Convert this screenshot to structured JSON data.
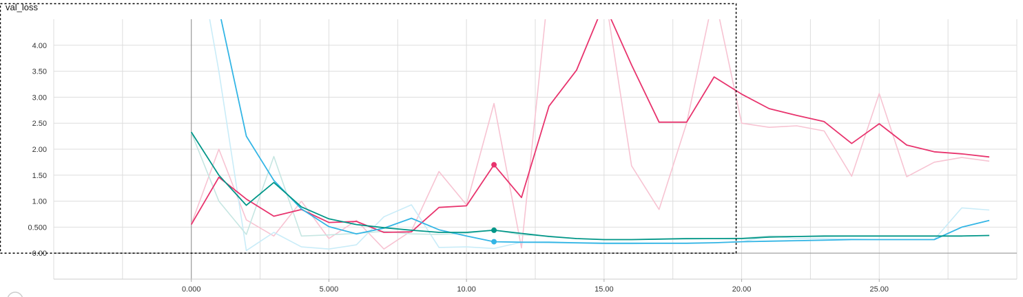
{
  "chart_data": {
    "type": "line",
    "title": "val_loss",
    "xlim": [
      -5,
      30
    ],
    "ylim": [
      -0.5,
      4.5
    ],
    "x_ticks": [
      0,
      5,
      10,
      15,
      20,
      25
    ],
    "x_tick_labels": [
      "0.000",
      "5.000",
      "10.00",
      "15.00",
      "20.00",
      "25.00"
    ],
    "y_ticks": [
      0,
      0.5,
      1,
      1.5,
      2,
      2.5,
      3,
      3.5,
      4
    ],
    "y_tick_labels": [
      "0.00",
      "0.500",
      "1.00",
      "1.50",
      "2.00",
      "2.50",
      "3.00",
      "3.50",
      "4.00"
    ],
    "grid": true,
    "selection_box": {
      "x": [
        -7,
        19.8
      ],
      "y": [
        0,
        4.8
      ]
    },
    "hover_step": 11,
    "series": [
      {
        "color": "#e8336d",
        "raw_color": "#f7c3d2",
        "raw": [
          [
            0,
            0.56
          ],
          [
            1,
            2.0
          ],
          [
            2,
            0.64
          ],
          [
            3,
            0.33
          ],
          [
            4,
            1.0
          ],
          [
            5,
            0.28
          ],
          [
            6,
            0.63
          ],
          [
            7,
            0.08
          ],
          [
            8,
            0.43
          ],
          [
            9,
            1.57
          ],
          [
            10,
            0.93
          ],
          [
            11,
            2.88
          ],
          [
            12,
            0.1
          ],
          [
            13,
            5.2
          ],
          [
            14,
            4.9
          ],
          [
            15,
            5.1
          ],
          [
            16,
            1.68
          ],
          [
            17,
            0.84
          ],
          [
            18,
            2.5
          ],
          [
            19,
            5.0
          ],
          [
            20,
            2.5
          ],
          [
            21,
            2.42
          ],
          [
            22,
            2.45
          ],
          [
            23,
            2.35
          ],
          [
            24,
            1.48
          ],
          [
            25,
            3.07
          ],
          [
            26,
            1.47
          ],
          [
            27,
            1.75
          ],
          [
            28,
            1.84
          ],
          [
            29,
            1.77
          ]
        ],
        "smoothed": [
          [
            0,
            0.55
          ],
          [
            1,
            1.46
          ],
          [
            2,
            1.04
          ],
          [
            3,
            0.71
          ],
          [
            4,
            0.84
          ],
          [
            5,
            0.59
          ],
          [
            6,
            0.61
          ],
          [
            7,
            0.4
          ],
          [
            8,
            0.41
          ],
          [
            9,
            0.88
          ],
          [
            10,
            0.91
          ],
          [
            11,
            1.7
          ],
          [
            12,
            1.07
          ],
          [
            13,
            2.83
          ],
          [
            14,
            3.52
          ],
          [
            15,
            4.8
          ],
          [
            16,
            3.62
          ],
          [
            17,
            2.52
          ],
          [
            18,
            2.52
          ],
          [
            19,
            3.39
          ],
          [
            20,
            3.06
          ],
          [
            21,
            2.78
          ],
          [
            22,
            2.65
          ],
          [
            23,
            2.53
          ],
          [
            24,
            2.11
          ],
          [
            25,
            2.49
          ],
          [
            26,
            2.08
          ],
          [
            27,
            1.95
          ],
          [
            28,
            1.91
          ],
          [
            29,
            1.85
          ]
        ]
      },
      {
        "color": "#33b5e5",
        "raw_color": "#c9ecf8",
        "raw": [
          [
            0,
            6.5
          ],
          [
            1,
            3.5
          ],
          [
            2,
            0.05
          ],
          [
            3,
            0.4
          ],
          [
            4,
            0.12
          ],
          [
            5,
            0.08
          ],
          [
            6,
            0.16
          ],
          [
            7,
            0.7
          ],
          [
            8,
            0.93
          ],
          [
            9,
            0.11
          ],
          [
            10,
            0.12
          ],
          [
            11,
            0.09
          ],
          [
            12,
            0.21
          ],
          [
            13,
            0.2
          ],
          [
            14,
            0.19
          ],
          [
            15,
            0.18
          ],
          [
            16,
            0.18
          ],
          [
            17,
            0.19
          ],
          [
            18,
            0.19
          ],
          [
            19,
            0.2
          ],
          [
            20,
            0.22
          ],
          [
            21,
            0.33
          ],
          [
            22,
            0.28
          ],
          [
            23,
            0.28
          ],
          [
            24,
            0.27
          ],
          [
            25,
            0.26
          ],
          [
            26,
            0.26
          ],
          [
            27,
            0.26
          ],
          [
            28,
            0.87
          ],
          [
            29,
            0.83
          ]
        ],
        "smoothed": [
          [
            0,
            6.5
          ],
          [
            1,
            4.7
          ],
          [
            2,
            2.25
          ],
          [
            3,
            1.4
          ],
          [
            4,
            0.85
          ],
          [
            5,
            0.51
          ],
          [
            6,
            0.37
          ],
          [
            7,
            0.48
          ],
          [
            8,
            0.67
          ],
          [
            9,
            0.45
          ],
          [
            10,
            0.33
          ],
          [
            11,
            0.22
          ],
          [
            12,
            0.21
          ],
          [
            13,
            0.21
          ],
          [
            14,
            0.2
          ],
          [
            15,
            0.19
          ],
          [
            16,
            0.19
          ],
          [
            17,
            0.19
          ],
          [
            18,
            0.19
          ],
          [
            19,
            0.2
          ],
          [
            20,
            0.22
          ],
          [
            21,
            0.23
          ],
          [
            22,
            0.24
          ],
          [
            23,
            0.25
          ],
          [
            24,
            0.26
          ],
          [
            25,
            0.26
          ],
          [
            26,
            0.26
          ],
          [
            27,
            0.26
          ],
          [
            28,
            0.5
          ],
          [
            29,
            0.63
          ]
        ]
      },
      {
        "color": "#009688",
        "raw_color": "#c6e6e2",
        "raw": [
          [
            0,
            2.32
          ],
          [
            1,
            1.0
          ],
          [
            2,
            0.36
          ],
          [
            3,
            1.86
          ],
          [
            4,
            0.33
          ],
          [
            5,
            0.35
          ],
          [
            6,
            0.38
          ],
          [
            7,
            0.42
          ],
          [
            8,
            0.37
          ],
          [
            9,
            0.36
          ],
          [
            10,
            0.38
          ],
          [
            11,
            0.45
          ],
          [
            12,
            0.35
          ],
          [
            13,
            0.33
          ],
          [
            14,
            0.28
          ],
          [
            15,
            0.26
          ],
          [
            16,
            0.26
          ],
          [
            17,
            0.27
          ],
          [
            18,
            0.27
          ],
          [
            19,
            0.28
          ],
          [
            20,
            0.29
          ],
          [
            21,
            0.33
          ],
          [
            22,
            0.32
          ],
          [
            23,
            0.32
          ],
          [
            24,
            0.33
          ],
          [
            25,
            0.33
          ],
          [
            26,
            0.33
          ],
          [
            27,
            0.33
          ],
          [
            28,
            0.33
          ],
          [
            29,
            0.34
          ]
        ],
        "smoothed": [
          [
            0,
            2.33
          ],
          [
            1,
            1.5
          ],
          [
            2,
            0.92
          ],
          [
            3,
            1.36
          ],
          [
            4,
            0.89
          ],
          [
            5,
            0.66
          ],
          [
            6,
            0.55
          ],
          [
            7,
            0.49
          ],
          [
            8,
            0.44
          ],
          [
            9,
            0.4
          ],
          [
            10,
            0.4
          ],
          [
            11,
            0.44
          ],
          [
            12,
            0.38
          ],
          [
            13,
            0.32
          ],
          [
            14,
            0.28
          ],
          [
            15,
            0.26
          ],
          [
            16,
            0.26
          ],
          [
            17,
            0.27
          ],
          [
            18,
            0.28
          ],
          [
            19,
            0.28
          ],
          [
            20,
            0.28
          ],
          [
            21,
            0.31
          ],
          [
            22,
            0.32
          ],
          [
            23,
            0.33
          ],
          [
            24,
            0.33
          ],
          [
            25,
            0.33
          ],
          [
            26,
            0.33
          ],
          [
            27,
            0.33
          ],
          [
            28,
            0.33
          ],
          [
            29,
            0.34
          ]
        ]
      }
    ]
  }
}
